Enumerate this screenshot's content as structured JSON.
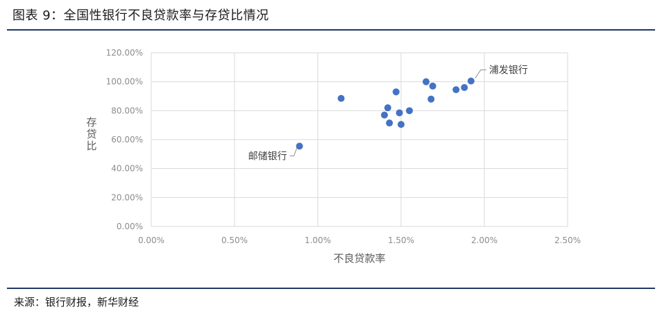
{
  "figure": {
    "title": "图表 9：全国性银行不良贷款率与存贷比情况",
    "source": "来源：银行财报，新华财经"
  },
  "chart_data": {
    "type": "scatter",
    "xlabel": "不良贷款率",
    "ylabel": "存贷比",
    "xlim": [
      0,
      0.025
    ],
    "ylim": [
      0,
      1.2
    ],
    "x_ticks": [
      "0.00%",
      "0.50%",
      "1.00%",
      "1.50%",
      "2.00%",
      "2.50%"
    ],
    "y_ticks": [
      "0.00%",
      "20.00%",
      "40.00%",
      "60.00%",
      "80.00%",
      "100.00%",
      "120.00%"
    ],
    "grid": true,
    "colors": {
      "point": "#4472c4",
      "grid": "#d9d9d9"
    },
    "points": [
      {
        "x": 0.0089,
        "y": 0.555
      },
      {
        "x": 0.0114,
        "y": 0.885
      },
      {
        "x": 0.014,
        "y": 0.77
      },
      {
        "x": 0.0142,
        "y": 0.82
      },
      {
        "x": 0.0143,
        "y": 0.715
      },
      {
        "x": 0.0147,
        "y": 0.93
      },
      {
        "x": 0.0149,
        "y": 0.785
      },
      {
        "x": 0.015,
        "y": 0.705
      },
      {
        "x": 0.0155,
        "y": 0.8
      },
      {
        "x": 0.0165,
        "y": 1.0
      },
      {
        "x": 0.0168,
        "y": 0.88
      },
      {
        "x": 0.0169,
        "y": 0.97
      },
      {
        "x": 0.0183,
        "y": 0.945
      },
      {
        "x": 0.0188,
        "y": 0.96
      },
      {
        "x": 0.0192,
        "y": 1.005
      }
    ],
    "annotations": [
      {
        "text": "浦发银行",
        "x": 0.0192,
        "y": 1.005
      },
      {
        "text": "邮储银行",
        "x": 0.0089,
        "y": 0.555
      }
    ]
  }
}
